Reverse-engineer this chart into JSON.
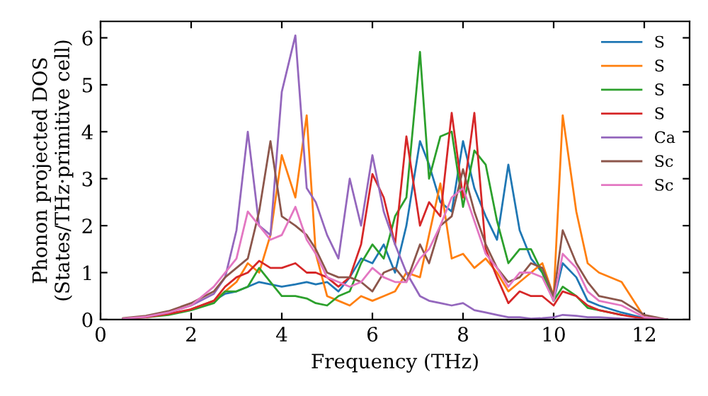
{
  "chart_data": {
    "type": "line",
    "xlabel": "Frequency (THz)",
    "ylabel": "Phonon projected DOS\n(States/THz·primitive cell)",
    "x": [
      0.5,
      1,
      1.5,
      2,
      2.5,
      2.75,
      3,
      3.25,
      3.5,
      3.75,
      4,
      4.3,
      4.55,
      4.75,
      5,
      5.25,
      5.5,
      5.75,
      6,
      6.25,
      6.5,
      6.75,
      7.05,
      7.25,
      7.5,
      7.75,
      8,
      8.25,
      8.5,
      8.75,
      9,
      9.25,
      9.5,
      9.75,
      10,
      10.2,
      10.5,
      10.75,
      11,
      11.5,
      12,
      12.5
    ],
    "series": [
      {
        "name": "S",
        "color": "#1f77b4",
        "values": [
          null,
          null,
          null,
          0.22,
          0.4,
          0.55,
          0.6,
          0.7,
          0.8,
          0.75,
          0.7,
          0.75,
          0.8,
          0.75,
          0.8,
          0.6,
          0.9,
          1.3,
          1.2,
          1.6,
          1.0,
          2.0,
          3.8,
          3.3,
          2.5,
          2.3,
          3.8,
          2.8,
          2.2,
          1.7,
          3.3,
          1.9,
          1.3,
          1.0,
          0.4,
          1.2,
          0.9,
          0.4,
          0.3,
          0.15,
          0.03,
          0
        ]
      },
      {
        "name": "S",
        "color": "#ff7f0e",
        "values": [
          null,
          null,
          null,
          0.22,
          0.4,
          0.6,
          0.8,
          1.2,
          1.0,
          1.8,
          3.5,
          2.6,
          4.35,
          1.4,
          0.5,
          0.4,
          0.3,
          0.5,
          0.4,
          0.5,
          0.6,
          1.0,
          0.9,
          1.8,
          2.9,
          1.3,
          1.4,
          1.1,
          1.3,
          1.0,
          0.6,
          0.8,
          1.0,
          1.2,
          0.5,
          4.35,
          2.3,
          1.2,
          1.0,
          0.8,
          0.05,
          0
        ]
      },
      {
        "name": "S",
        "color": "#2ca02c",
        "values": [
          0.02,
          0.05,
          0.1,
          0.2,
          0.35,
          0.6,
          0.6,
          0.7,
          1.1,
          0.8,
          0.5,
          0.5,
          0.45,
          0.35,
          0.3,
          0.5,
          0.6,
          1.2,
          1.6,
          1.3,
          2.2,
          2.6,
          5.7,
          3.0,
          3.9,
          4.0,
          2.4,
          3.6,
          3.3,
          2.1,
          1.2,
          1.5,
          1.5,
          1.0,
          0.4,
          0.7,
          0.5,
          0.25,
          0.2,
          0.1,
          null,
          null
        ]
      },
      {
        "name": "S",
        "color": "#d62728",
        "values": [
          0.02,
          0.05,
          0.12,
          0.22,
          0.4,
          0.7,
          0.9,
          1.0,
          1.25,
          1.1,
          1.1,
          1.2,
          1.0,
          1.0,
          0.9,
          0.7,
          0.9,
          1.6,
          3.1,
          2.6,
          1.6,
          3.9,
          2.0,
          2.5,
          2.2,
          4.4,
          2.6,
          4.4,
          1.5,
          0.9,
          0.35,
          0.6,
          0.5,
          0.5,
          0.3,
          0.6,
          0.5,
          0.3,
          0.2,
          0.1,
          0.02,
          0
        ]
      },
      {
        "name": "Ca",
        "color": "#9467bd",
        "values": [
          0.02,
          0.06,
          0.15,
          0.3,
          0.55,
          0.9,
          1.9,
          4.0,
          2.0,
          1.8,
          4.85,
          6.05,
          2.8,
          2.5,
          1.8,
          1.3,
          3.0,
          2.0,
          3.5,
          2.3,
          1.6,
          1.0,
          0.5,
          0.4,
          0.35,
          0.3,
          0.35,
          0.2,
          0.15,
          0.1,
          0.05,
          0.05,
          0.02,
          0.03,
          0.05,
          0.1,
          0.08,
          0.05,
          0.05,
          0.02,
          0,
          0
        ]
      },
      {
        "name": "Sc",
        "color": "#8c564b",
        "values": [
          0.03,
          0.08,
          0.18,
          0.35,
          0.6,
          0.9,
          1.1,
          1.3,
          2.3,
          3.8,
          2.2,
          2.0,
          1.8,
          1.5,
          1.0,
          0.9,
          0.9,
          0.8,
          0.6,
          1.0,
          1.1,
          0.8,
          1.6,
          1.2,
          2.0,
          2.2,
          3.2,
          2.3,
          1.6,
          1.1,
          0.8,
          0.9,
          1.2,
          1.1,
          0.5,
          1.9,
          1.2,
          0.8,
          0.5,
          0.4,
          0.1,
          0
        ]
      },
      {
        "name": "Sc",
        "color": "#e377c2",
        "values": [
          0.02,
          0.06,
          0.15,
          0.3,
          0.7,
          1.0,
          1.3,
          2.3,
          2.0,
          1.7,
          1.8,
          2.4,
          1.7,
          1.4,
          0.9,
          0.8,
          0.7,
          0.8,
          1.1,
          0.9,
          0.8,
          0.8,
          1.3,
          1.5,
          2.0,
          2.6,
          2.8,
          2.1,
          1.4,
          1.1,
          0.7,
          1.0,
          1.0,
          0.9,
          0.4,
          1.4,
          1.1,
          0.6,
          0.4,
          0.3,
          0.05,
          0
        ]
      }
    ],
    "xlim": [
      0,
      13
    ],
    "ylim": [
      0,
      6.35
    ],
    "xticks": [
      0,
      2,
      4,
      6,
      8,
      10,
      12
    ],
    "yticks": [
      0,
      1,
      2,
      3,
      4,
      5,
      6
    ],
    "grid": false,
    "legend": "top right",
    "marker": "none",
    "line_style": "solid"
  }
}
